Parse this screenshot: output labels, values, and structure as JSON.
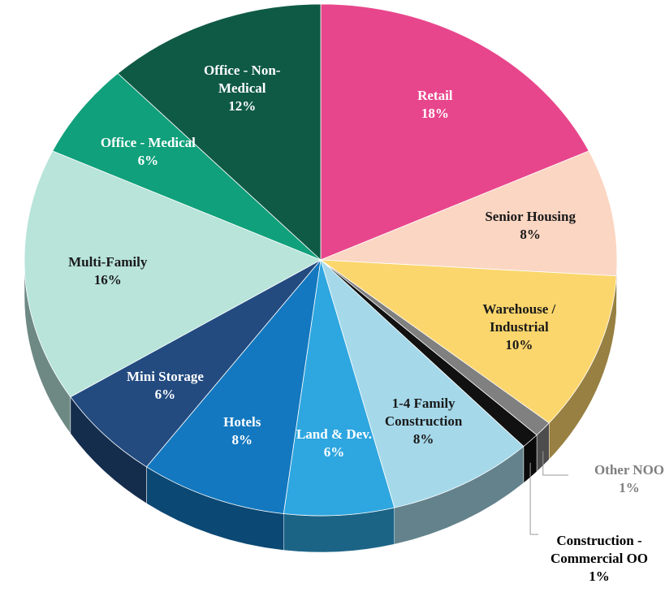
{
  "chart_data": {
    "type": "pie",
    "categories": [
      "Retail",
      "Senior Housing",
      "Warehouse / Industrial",
      "Other NOO",
      "Construction - Commercial OO",
      "1-4 Family Construction",
      "Land & Dev.",
      "Hotels",
      "Mini Storage",
      "Multi-Family",
      "Office - Medical",
      "Office - Non-Medical"
    ],
    "values": [
      18,
      8,
      10,
      1,
      1,
      8,
      6,
      8,
      6,
      16,
      6,
      12
    ],
    "value_labels": [
      "18%",
      "8%",
      "10%",
      "1%",
      "1%",
      "8%",
      "6%",
      "8%",
      "6%",
      "16%",
      "6%",
      "12%"
    ],
    "colors": [
      "#e8468c",
      "#fbd6c3",
      "#fbd66c",
      "#808080",
      "#111111",
      "#a5d9ea",
      "#2ea6e0",
      "#1378bf",
      "#234b80",
      "#b8e4da",
      "#10a07b",
      "#0f5a45"
    ]
  }
}
